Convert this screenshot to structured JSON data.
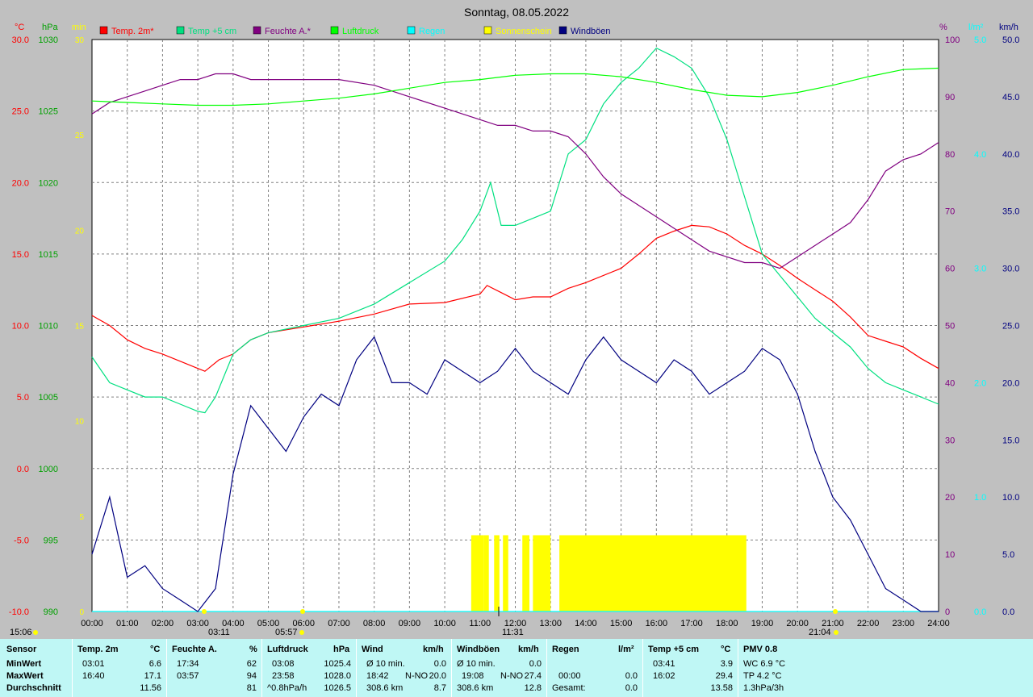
{
  "title": "Sonntag, 08.05.2022",
  "axes": {
    "left_temp": {
      "unit": "°C",
      "ticks": [
        "30.0",
        "25.0",
        "20.0",
        "15.0",
        "10.0",
        "5.0",
        "0.0",
        "-5.0",
        "-10.0"
      ],
      "color": "#ff0000"
    },
    "left_press": {
      "unit": "hPa",
      "ticks": [
        "1030",
        "1025",
        "1020",
        "1015",
        "1010",
        "1005",
        "1000",
        "995",
        "990"
      ],
      "color": "#00a000"
    },
    "left_min": {
      "unit": "min",
      "ticks": [
        "30",
        "25",
        "20",
        "15",
        "10",
        "5",
        "0"
      ],
      "color": "#ffff00"
    },
    "right_hum": {
      "unit": "%",
      "ticks": [
        "100",
        "90",
        "80",
        "70",
        "60",
        "50",
        "40",
        "30",
        "20",
        "10",
        "0"
      ],
      "color": "#800080"
    },
    "right_rain": {
      "unit": "l/m²",
      "ticks": [
        "5.0",
        "4.0",
        "3.0",
        "2.0",
        "1.0",
        "0.0"
      ],
      "color": "#00ffff"
    },
    "right_wind": {
      "unit": "km/h",
      "ticks": [
        "50.0",
        "45.0",
        "40.0",
        "35.0",
        "30.0",
        "25.0",
        "20.0",
        "15.0",
        "10.0",
        "5.0",
        "0.0"
      ],
      "color": "#000080"
    },
    "x_ticks": [
      "00:00",
      "01:00",
      "02:00",
      "03:00",
      "04:00",
      "05:00",
      "06:00",
      "07:00",
      "08:00",
      "09:00",
      "10:00",
      "11:00",
      "12:00",
      "13:00",
      "14:00",
      "15:00",
      "16:00",
      "17:00",
      "18:00",
      "19:00",
      "20:00",
      "21:00",
      "22:00",
      "23:00",
      "24:00"
    ]
  },
  "legend": [
    {
      "label": "Temp. 2m*",
      "color": "#ff0000"
    },
    {
      "label": "Temp +5 cm",
      "color": "#00e080"
    },
    {
      "label": "Feuchte A.*",
      "color": "#800080"
    },
    {
      "label": "Luftdruck",
      "color": "#00ff00"
    },
    {
      "label": "Regen",
      "color": "#00ffff"
    },
    {
      "label": "Sonnenschein",
      "color": "#ffff00"
    },
    {
      "label": "Windböen",
      "color": "#000080"
    }
  ],
  "markers": {
    "sunrise_time": "05:57",
    "sunset_time": "21:04",
    "noon_time": "11:31",
    "tmin_time": "03:11",
    "left_bottom": "15:06"
  },
  "chart_data": {
    "type": "line",
    "x_unit": "hour of day",
    "xlim": [
      0,
      24
    ],
    "series": [
      {
        "name": "Temp. 2m*",
        "unit": "°C",
        "color": "#ff0000",
        "x": [
          0,
          0.5,
          1,
          1.5,
          2,
          2.5,
          3,
          3.2,
          3.6,
          4,
          4.5,
          5,
          6,
          7,
          8,
          9,
          10,
          11,
          11.2,
          11.6,
          12,
          12.5,
          13,
          13.5,
          14,
          15,
          15.5,
          16,
          16.5,
          17,
          17.5,
          18,
          18.5,
          19,
          19.5,
          20,
          20.5,
          21,
          21.5,
          22,
          22.5,
          23,
          23.5,
          24
        ],
        "y": [
          10.7,
          10.0,
          9.0,
          8.4,
          8.0,
          7.5,
          7.0,
          6.8,
          7.6,
          8.0,
          9.0,
          9.5,
          9.9,
          10.3,
          10.8,
          11.5,
          11.6,
          12.2,
          12.8,
          12.3,
          11.8,
          12.0,
          12.0,
          12.6,
          13.0,
          14.0,
          15.0,
          16.1,
          16.6,
          17.0,
          16.9,
          16.4,
          15.6,
          15.0,
          14.2,
          13.3,
          12.5,
          11.7,
          10.6,
          9.3,
          8.9,
          8.5,
          7.7,
          7.0
        ]
      },
      {
        "name": "Temp +5 cm",
        "unit": "°C",
        "color": "#00e080",
        "x": [
          0,
          0.5,
          1,
          1.5,
          2,
          2.5,
          3,
          3.2,
          3.5,
          4,
          4.5,
          5,
          6,
          7,
          8,
          9,
          10,
          10.5,
          11,
          11.3,
          11.6,
          12,
          12.5,
          13,
          13.5,
          14,
          14.5,
          15,
          15.5,
          16,
          16.5,
          17,
          17.5,
          18,
          18.5,
          19,
          19.5,
          20,
          20.5,
          21,
          21.5,
          22,
          22.5,
          23,
          23.5,
          24
        ],
        "y": [
          7.8,
          6.0,
          5.5,
          5.0,
          5.0,
          4.5,
          4.0,
          3.9,
          5.0,
          8.0,
          9.0,
          9.5,
          10.0,
          10.5,
          11.5,
          13.0,
          14.5,
          16.0,
          18.0,
          20.0,
          17.0,
          17.0,
          17.5,
          18.0,
          22.0,
          23.0,
          25.5,
          27.0,
          28.0,
          29.4,
          28.8,
          28.0,
          26.0,
          23.0,
          19.0,
          15.0,
          13.5,
          12.0,
          10.5,
          9.5,
          8.5,
          7.0,
          6.0,
          5.5,
          5.0,
          4.5
        ]
      },
      {
        "name": "Feuchte A.*",
        "unit": "%",
        "color": "#800080",
        "x": [
          0,
          0.5,
          1,
          1.5,
          2,
          2.5,
          3,
          3.5,
          4,
          4.5,
          5,
          6,
          7,
          8,
          8.5,
          9,
          9.5,
          10,
          10.5,
          11,
          11.5,
          12,
          12.5,
          13,
          13.5,
          14,
          14.5,
          15,
          15.5,
          16,
          16.5,
          17,
          17.5,
          18,
          18.5,
          19,
          19.5,
          20,
          20.5,
          21,
          21.5,
          22,
          22.5,
          23,
          23.5,
          24
        ],
        "y": [
          87,
          89,
          90,
          91,
          92,
          93,
          93,
          94,
          94,
          93,
          93,
          93,
          93,
          92,
          91,
          90,
          89,
          88,
          87,
          86,
          85,
          85,
          84,
          84,
          83,
          80,
          76,
          73,
          71,
          69,
          67,
          65,
          63,
          62,
          61,
          61,
          60,
          62,
          64,
          66,
          68,
          72,
          77,
          79,
          80,
          82
        ]
      },
      {
        "name": "Luftdruck",
        "unit": "hPa",
        "color": "#00ff00",
        "x": [
          0,
          1,
          2,
          3,
          4,
          5,
          6,
          7,
          8,
          9,
          10,
          11,
          12,
          13,
          14,
          15,
          16,
          17,
          18,
          19,
          20,
          21,
          22,
          23,
          24
        ],
        "y": [
          1025.7,
          1025.6,
          1025.5,
          1025.4,
          1025.4,
          1025.5,
          1025.7,
          1025.9,
          1026.2,
          1026.6,
          1027.0,
          1027.2,
          1027.5,
          1027.6,
          1027.6,
          1027.4,
          1027.0,
          1026.5,
          1026.1,
          1026.0,
          1026.3,
          1026.8,
          1027.4,
          1027.9,
          1028.0
        ]
      },
      {
        "name": "Regen",
        "unit": "l/m²",
        "color": "#00ffff",
        "x": [
          0,
          24
        ],
        "y": [
          0.0,
          0.0
        ]
      },
      {
        "name": "Windböen",
        "unit": "km/h",
        "color": "#000080",
        "x": [
          0,
          0.5,
          1,
          1.5,
          2,
          2.5,
          3,
          3.5,
          4,
          4.5,
          5,
          5.5,
          6,
          6.5,
          7,
          7.5,
          8,
          8.5,
          9,
          9.5,
          10,
          10.5,
          11,
          11.5,
          12,
          12.5,
          13,
          13.5,
          14,
          14.5,
          15,
          15.5,
          16,
          16.5,
          17,
          17.5,
          18,
          18.5,
          19,
          19.5,
          20,
          20.5,
          21,
          21.5,
          22,
          22.5,
          23,
          23.5,
          24
        ],
        "y": [
          5,
          10,
          3,
          4,
          2,
          1,
          0,
          2,
          12,
          18,
          16,
          14,
          17,
          19,
          18,
          22,
          24,
          20,
          20,
          19,
          22,
          21,
          20,
          21,
          23,
          21,
          20,
          19,
          22,
          24,
          22,
          21,
          20,
          22,
          21,
          19,
          20,
          21,
          23,
          22,
          19,
          14,
          10,
          8,
          5,
          2,
          1,
          0,
          0
        ]
      },
      {
        "name": "Sonnenschein",
        "unit": "min",
        "color": "#ffff00",
        "x": [
          10.75,
          11.1,
          11.4,
          11.65,
          12.2,
          12.5,
          13.25,
          18.55
        ],
        "x_end": [
          11.1,
          11.25,
          11.55,
          11.8,
          12.4,
          13.0,
          18.55,
          18.55
        ],
        "y": [
          4,
          4,
          4,
          4,
          4,
          4,
          4,
          4
        ]
      }
    ]
  },
  "stats": {
    "sensor": {
      "title": "Sensor",
      "rows": [
        "MinWert",
        "MaxWert",
        "Durchschnitt"
      ]
    },
    "temp2m": {
      "title": "Temp. 2m",
      "unit": "°C",
      "rows": [
        [
          "03:01",
          "6.6"
        ],
        [
          "16:40",
          "17.1"
        ],
        [
          "",
          "11.56"
        ]
      ]
    },
    "humidity": {
      "title": "Feuchte A.",
      "unit": "%",
      "rows": [
        [
          "17:34",
          "62"
        ],
        [
          "03:57",
          "94"
        ],
        [
          "",
          "81"
        ]
      ]
    },
    "pressure": {
      "title": "Luftdruck",
      "unit": "hPa",
      "rows": [
        [
          "03:08",
          "1025.4"
        ],
        [
          "23:58",
          "1028.0"
        ],
        [
          "^0.8hPa/h",
          "1026.5"
        ]
      ]
    },
    "wind": {
      "title": "Wind",
      "unit": "km/h",
      "rows": [
        [
          "Ø 10 min.",
          "",
          "0.0"
        ],
        [
          "18:42",
          "N-NO",
          "20.0"
        ],
        [
          "308.6 km",
          "",
          "8.7"
        ]
      ]
    },
    "gusts": {
      "title": "Windböen",
      "unit": "km/h",
      "rows": [
        [
          "Ø 10 min.",
          "",
          "0.0"
        ],
        [
          "19:08",
          "N-NO",
          "27.4"
        ],
        [
          "308.6 km",
          "",
          "12.8"
        ]
      ]
    },
    "rain": {
      "title": "Regen",
      "unit": "l/m²",
      "rows": [
        [
          "",
          ""
        ],
        [
          "00:00",
          "0.0"
        ],
        [
          "Gesamt:",
          "0.0"
        ]
      ]
    },
    "temp5cm": {
      "title": "Temp +5 cm",
      "unit": "°C",
      "rows": [
        [
          "03:41",
          "3.9"
        ],
        [
          "16:02",
          "29.4"
        ],
        [
          "",
          "13.58"
        ]
      ]
    },
    "pmv": {
      "title": "PMV 0.8",
      "rows": [
        "WC 6.9 °C",
        "TP 4.2 °C",
        "1.3hPa/3h"
      ]
    }
  }
}
